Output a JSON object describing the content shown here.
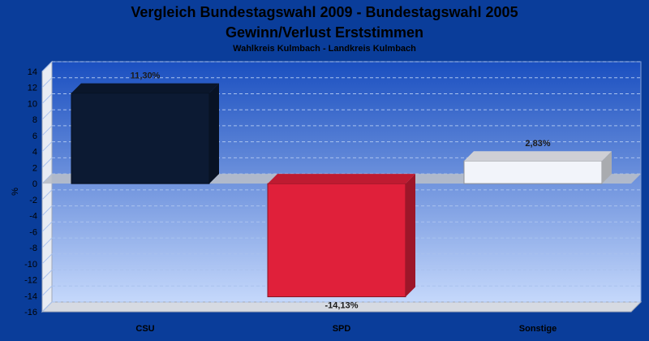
{
  "chart_data": {
    "type": "bar",
    "title": "Vergleich Bundestagswahl 2009 - Bundestagswahl 2005",
    "subtitle_line": "Gewinn/Verlust Erststimmen",
    "subtitle": "Wahlkreis Kulmbach - Landkreis Kulmbach",
    "ylabel": "%",
    "xlabel": "",
    "ylim": [
      -16,
      14
    ],
    "yticks": [
      14,
      12,
      10,
      8,
      6,
      4,
      2,
      0,
      -2,
      -4,
      -6,
      -8,
      -10,
      -12,
      -14,
      -16
    ],
    "grid": true,
    "categories": [
      "CSU",
      "SPD",
      "Sonstige"
    ],
    "values": [
      11.3,
      -14.13,
      2.83
    ],
    "value_labels": [
      "11,30%",
      "-14,13%",
      "2,83%"
    ],
    "colors": {
      "CSU": "#0c1a33",
      "SPD": "#e0203a",
      "Sonstige": "#f2f4fa"
    }
  }
}
